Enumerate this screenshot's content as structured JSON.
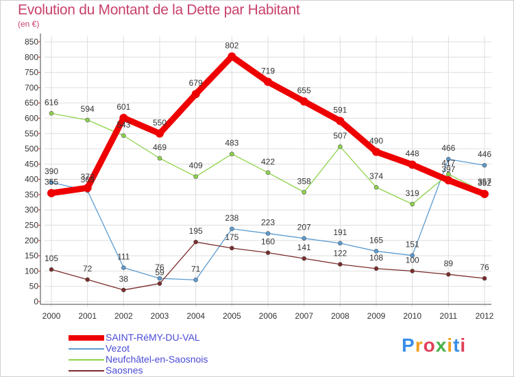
{
  "title": "Evolution du Montant de la Dette par Habitant",
  "subtitle": "(en €)",
  "logo": {
    "text": "Proxiti",
    "colors": [
      "#3a8ee6",
      "#f0a020",
      "#e0405a",
      "#49b14a",
      "#f0a020",
      "#3a8ee6",
      "#e0405a"
    ]
  },
  "chart_data": {
    "type": "line",
    "x": [
      "2000",
      "2001",
      "2002",
      "2003",
      "2004",
      "2005",
      "2006",
      "2007",
      "2008",
      "2009",
      "2010",
      "2011",
      "2012"
    ],
    "ylim": [
      0,
      850
    ],
    "yticks": [
      0,
      50,
      100,
      150,
      200,
      250,
      300,
      350,
      400,
      450,
      500,
      550,
      600,
      650,
      700,
      750,
      800,
      850
    ],
    "grid": true,
    "legend_position": "bottom-left",
    "series": [
      {
        "name": "SAINT-RéMY-DU-VAL",
        "color": "#ee0000",
        "thick": true,
        "values": [
          355,
          372,
          601,
          550,
          679,
          802,
          719,
          655,
          591,
          490,
          448,
          397,
          352
        ],
        "labels": [
          "355",
          "372",
          "601",
          "550",
          "679",
          "802",
          "719",
          "655",
          "591",
          "490",
          "448",
          "397",
          "352"
        ]
      },
      {
        "name": "Vezot",
        "color": "#5b9bd0",
        "thick": false,
        "values": [
          390,
          363,
          111,
          76,
          71,
          238,
          223,
          207,
          191,
          165,
          151,
          466,
          446
        ],
        "labels": [
          "390",
          "363",
          "111",
          "76",
          "71",
          "238",
          "223",
          "207",
          "191",
          "165",
          "151",
          "466",
          "446"
        ]
      },
      {
        "name": "Neufchâtel-en-Saosnois",
        "color": "#8ed34a",
        "thick": false,
        "values": [
          616,
          594,
          543,
          469,
          409,
          483,
          422,
          358,
          507,
          374,
          319,
          417,
          357
        ],
        "labels": [
          "616",
          "594",
          "543",
          "469",
          "409",
          "483",
          "422",
          "358",
          "507",
          "374",
          "319",
          "417",
          "357"
        ]
      },
      {
        "name": "Saosnes",
        "color": "#7a2b2b",
        "thick": false,
        "values": [
          105,
          72,
          38,
          59,
          195,
          175,
          160,
          141,
          122,
          108,
          100,
          89,
          76
        ],
        "labels": [
          "105",
          "72",
          "38",
          "59",
          "195",
          "175",
          "160",
          "141",
          "122",
          "108",
          "100",
          "89",
          "76"
        ]
      }
    ]
  }
}
